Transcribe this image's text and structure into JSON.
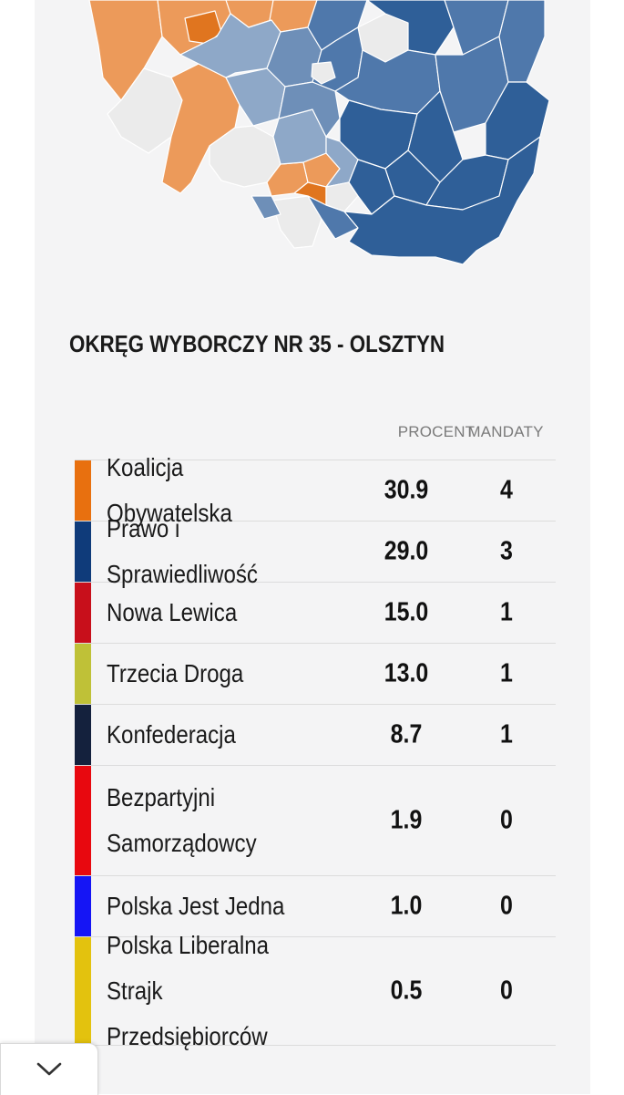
{
  "district": {
    "title": "OKRĘG WYBORCZY NR 35 - OLSZTYN"
  },
  "columns": {
    "percent": "PROCENT",
    "seats": "MANDATY"
  },
  "results": [
    {
      "party": "Koalicja Obywatelska",
      "percent": "30.9",
      "seats": "4",
      "color": "#e8700f"
    },
    {
      "party": "Prawo i Sprawiedliwość",
      "percent": "29.0",
      "seats": "3",
      "color": "#0f3b7a"
    },
    {
      "party": "Nowa Lewica",
      "percent": "15.0",
      "seats": "1",
      "color": "#c80f1b"
    },
    {
      "party": "Trzecia Droga",
      "percent": "13.0",
      "seats": "1",
      "color": "#bfc137"
    },
    {
      "party": "Konfederacja",
      "percent": "8.7",
      "seats": "1",
      "color": "#14213d"
    },
    {
      "party": "Bezpartyjni Samorządowcy",
      "percent": "1.9",
      "seats": "0",
      "color": "#e8080f"
    },
    {
      "party": "Polska Jest Jedna",
      "percent": "1.0",
      "seats": "0",
      "color": "#1515f5"
    },
    {
      "party": "Polska Liberalna Strajk Przedsiębiorców",
      "percent": "0.5",
      "seats": "0",
      "color": "#e3c20e"
    }
  ],
  "map": {
    "colors": {
      "orange": "#ec9a5a",
      "orange_dark": "#e0751f",
      "blue_dark": "#2f5f98",
      "blue_mid": "#4f78ab",
      "blue_light": "#8ea8c8",
      "gray": "#ebebeb"
    }
  },
  "bottom_toggle": {
    "icon": "chevron-down-icon"
  }
}
